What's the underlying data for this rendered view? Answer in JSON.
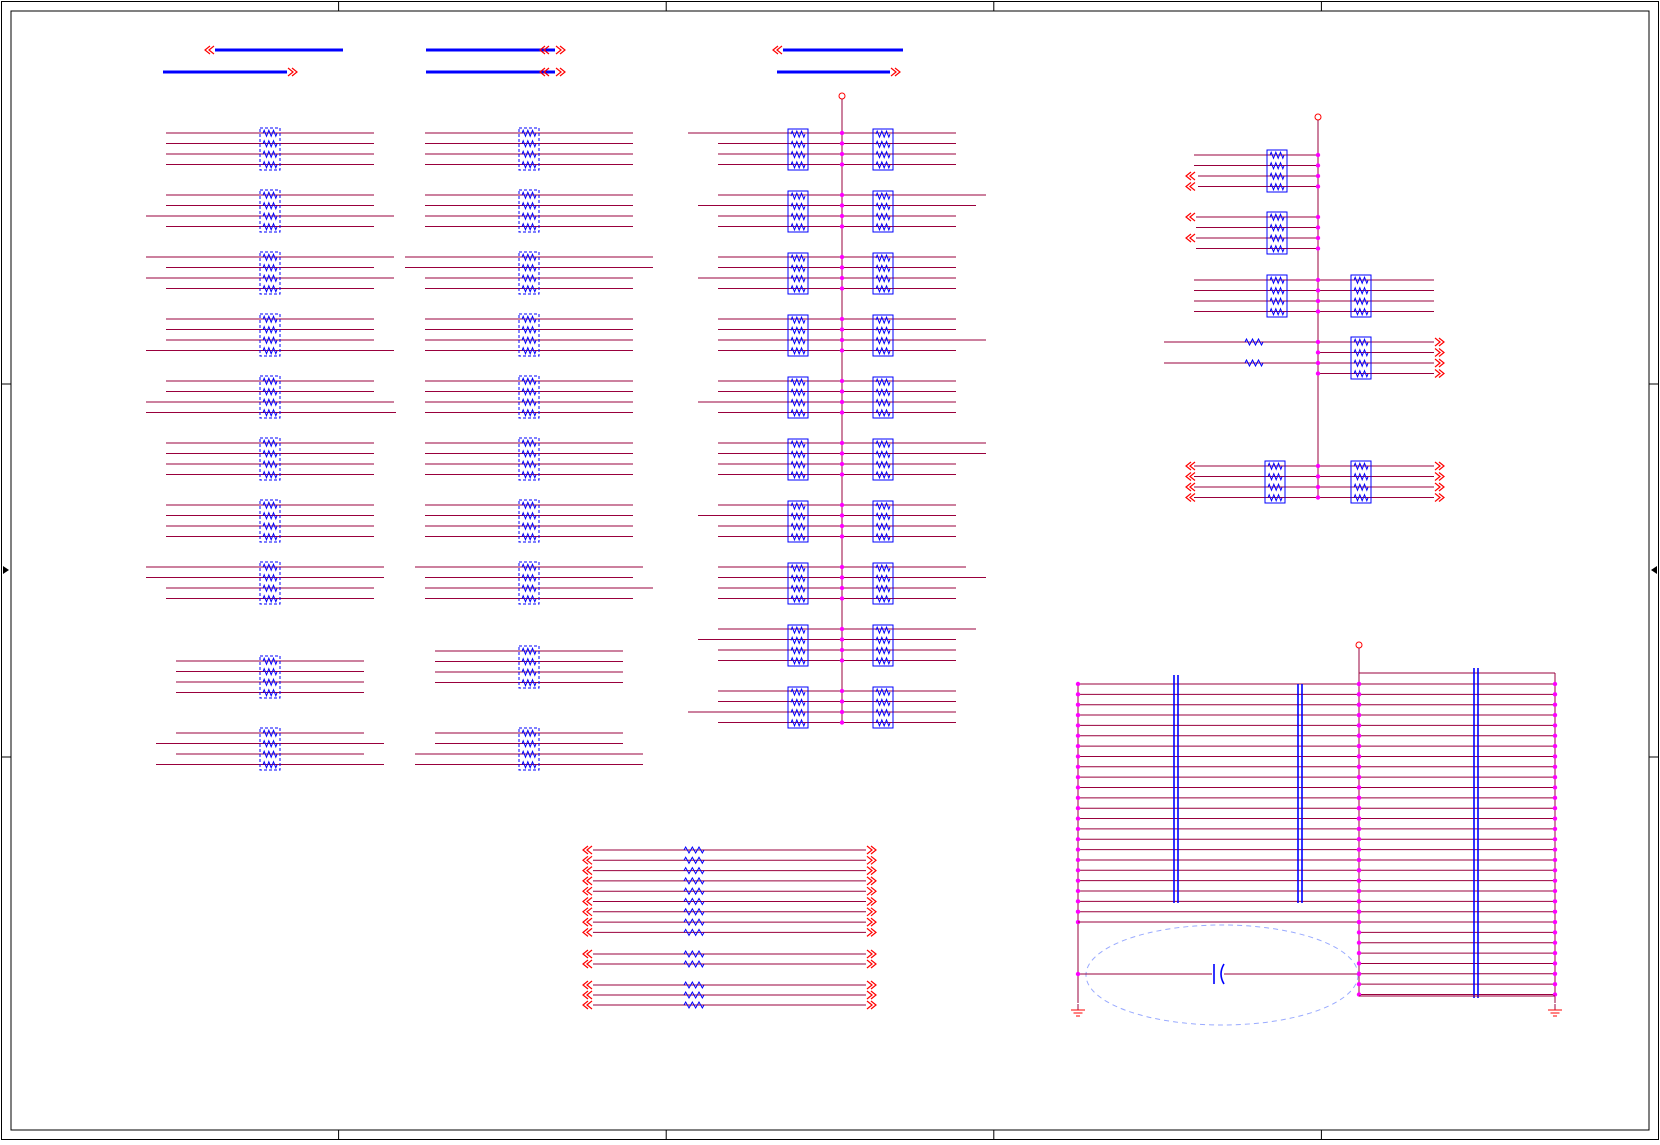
{
  "colors": {
    "border": "#000000",
    "wire": "#99003c",
    "bus": "#0000ff",
    "component": "#0000ff",
    "junction": "#ff00ff",
    "port": "#ff0000",
    "keepout": "#99aaff"
  },
  "sheet": {
    "columns": 5,
    "rows": 3
  },
  "schematic": {
    "sections": [
      "bus-arrows",
      "termination-array-column-1",
      "termination-array-column-2",
      "termination-array-column-3",
      "upper-right-resistor-network",
      "series-resistor-bank",
      "decoupling-capacitor-bank"
    ],
    "power_symbol": "vcc-port-icon",
    "ground_symbol": "ground-icon",
    "resistor_pack_symbol": "resistor-pack-icon",
    "resistor_symbol": "resistor-icon",
    "capacitor_symbol": "capacitor-icon",
    "port_symbol": "offpage-connector-icon"
  }
}
